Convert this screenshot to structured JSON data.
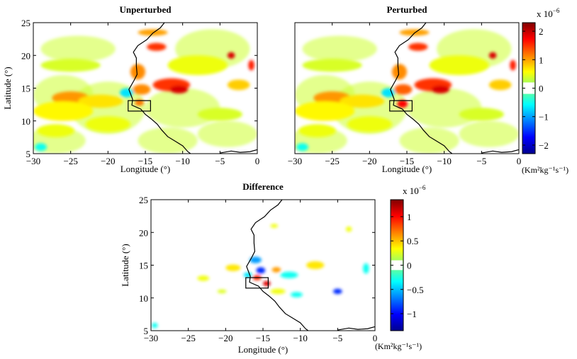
{
  "chart_data": [
    {
      "type": "heatmap",
      "title": "Unperturbed",
      "xlabel": "Longitude (°)",
      "ylabel": "Latitude (°)",
      "xlim": [
        -30,
        0
      ],
      "ylim": [
        5,
        25
      ],
      "xticks": [
        -30,
        -25,
        -20,
        -15,
        -10,
        -5,
        0
      ],
      "yticks": [
        5,
        10,
        15,
        20,
        25
      ],
      "xtick_labels": [
        "−30",
        "−25",
        "−20",
        "−15",
        "−10",
        "−5",
        "0"
      ],
      "ytick_labels": [
        "5",
        "10",
        "15",
        "20",
        "25"
      ],
      "box": {
        "lon": [
          -17.3,
          -14.3
        ],
        "lat": [
          11.5,
          13.1
        ]
      },
      "colormap": "jet",
      "white_band": [
        -0.2,
        0.2
      ],
      "blobs": [
        {
          "lon": -25,
          "lat": 13.5,
          "value": 1.05,
          "rx": 2.5,
          "ry": 1.0
        },
        {
          "lon": -21,
          "lat": 13.0,
          "value": 0.7,
          "rx": 3.0,
          "ry": 1.0
        },
        {
          "lon": -17.5,
          "lat": 14.3,
          "value": -0.7,
          "rx": 0.9,
          "ry": 0.7
        },
        {
          "lon": -15.5,
          "lat": 14.8,
          "value": 1.1,
          "rx": 1.2,
          "ry": 0.8
        },
        {
          "lon": -15.8,
          "lat": 12.8,
          "value": 1.2,
          "rx": 0.6,
          "ry": 0.5
        },
        {
          "lon": -11.5,
          "lat": 15.5,
          "value": 1.5,
          "rx": 2.5,
          "ry": 1.0
        },
        {
          "lon": -10.5,
          "lat": 14.8,
          "value": 1.9,
          "rx": 1.2,
          "ry": 0.6
        },
        {
          "lon": -13.5,
          "lat": 21.3,
          "value": 1.5,
          "rx": 1.3,
          "ry": 0.6
        },
        {
          "lon": -14,
          "lat": 23.5,
          "value": 1.0,
          "rx": 2.0,
          "ry": 0.5
        },
        {
          "lon": -16,
          "lat": 17.5,
          "value": 1.1,
          "rx": 1.0,
          "ry": 1.2
        },
        {
          "lon": -3.5,
          "lat": 20.0,
          "value": 1.9,
          "rx": 0.5,
          "ry": 0.5
        },
        {
          "lon": -0.8,
          "lat": 18.5,
          "value": 1.6,
          "rx": 0.4,
          "ry": 0.8
        },
        {
          "lon": -2.5,
          "lat": 15.5,
          "value": 0.8,
          "rx": 1.5,
          "ry": 0.8
        },
        {
          "lon": -27,
          "lat": 8.5,
          "value": 0.5,
          "rx": 2.5,
          "ry": 1.0
        },
        {
          "lon": -26,
          "lat": 11.5,
          "value": 0.6,
          "rx": 4.0,
          "ry": 1.5
        },
        {
          "lon": -20,
          "lat": 9.5,
          "value": 0.5,
          "rx": 3.0,
          "ry": 1.2
        },
        {
          "lon": -8,
          "lat": 18.5,
          "value": 0.5,
          "rx": 4.0,
          "ry": 1.5
        },
        {
          "lon": -25,
          "lat": 18.5,
          "value": 0.4,
          "rx": 4.0,
          "ry": 1.0
        },
        {
          "lon": -5,
          "lat": 11.0,
          "value": 0.4,
          "rx": 3.0,
          "ry": 1.0
        },
        {
          "lon": -29,
          "lat": 6.0,
          "value": -0.5,
          "rx": 0.8,
          "ry": 0.6
        }
      ]
    },
    {
      "type": "heatmap",
      "title": "Perturbed",
      "xlabel": "Longitude (°)",
      "ylabel": "",
      "xlim": [
        -30,
        0
      ],
      "ylim": [
        5,
        25
      ],
      "xticks": [
        -30,
        -25,
        -20,
        -15,
        -10,
        -5,
        0
      ],
      "xtick_labels": [
        "−30",
        "−25",
        "−20",
        "−15",
        "−10",
        "−5",
        "0"
      ],
      "box": {
        "lon": [
          -17.3,
          -14.3
        ],
        "lat": [
          11.5,
          13.1
        ]
      },
      "colormap": "jet",
      "white_band": [
        -0.2,
        0.2
      ],
      "blobs": [
        {
          "lon": -25,
          "lat": 13.5,
          "value": 1.05,
          "rx": 2.5,
          "ry": 1.0
        },
        {
          "lon": -21,
          "lat": 13.0,
          "value": 0.7,
          "rx": 3.0,
          "ry": 1.0
        },
        {
          "lon": -17.5,
          "lat": 14.3,
          "value": -0.7,
          "rx": 0.9,
          "ry": 0.7
        },
        {
          "lon": -15.5,
          "lat": 14.8,
          "value": 1.3,
          "rx": 1.2,
          "ry": 0.8
        },
        {
          "lon": -15.6,
          "lat": 12.6,
          "value": 1.7,
          "rx": 0.7,
          "ry": 0.6
        },
        {
          "lon": -11.5,
          "lat": 15.5,
          "value": 1.5,
          "rx": 2.5,
          "ry": 1.0
        },
        {
          "lon": -10.5,
          "lat": 14.8,
          "value": 1.9,
          "rx": 1.2,
          "ry": 0.6
        },
        {
          "lon": -13.5,
          "lat": 21.3,
          "value": 1.5,
          "rx": 1.3,
          "ry": 0.6
        },
        {
          "lon": -14,
          "lat": 23.5,
          "value": 1.0,
          "rx": 2.0,
          "ry": 0.5
        },
        {
          "lon": -16,
          "lat": 17.5,
          "value": 1.1,
          "rx": 1.0,
          "ry": 1.2
        },
        {
          "lon": -3.5,
          "lat": 20.0,
          "value": 1.9,
          "rx": 0.5,
          "ry": 0.5
        },
        {
          "lon": -0.8,
          "lat": 18.5,
          "value": 1.6,
          "rx": 0.4,
          "ry": 0.8
        },
        {
          "lon": -2.5,
          "lat": 15.5,
          "value": 0.8,
          "rx": 1.5,
          "ry": 0.8
        },
        {
          "lon": -27,
          "lat": 8.5,
          "value": 0.5,
          "rx": 2.5,
          "ry": 1.0
        },
        {
          "lon": -26,
          "lat": 11.5,
          "value": 0.6,
          "rx": 4.0,
          "ry": 1.5
        },
        {
          "lon": -20,
          "lat": 9.5,
          "value": 0.5,
          "rx": 3.0,
          "ry": 1.2
        },
        {
          "lon": -8,
          "lat": 18.5,
          "value": 0.5,
          "rx": 4.0,
          "ry": 1.5
        },
        {
          "lon": -25,
          "lat": 18.5,
          "value": 0.4,
          "rx": 4.0,
          "ry": 1.0
        },
        {
          "lon": -5,
          "lat": 11.0,
          "value": 0.4,
          "rx": 3.0,
          "ry": 1.0
        },
        {
          "lon": -29,
          "lat": 6.0,
          "value": -0.5,
          "rx": 0.8,
          "ry": 0.6
        }
      ]
    },
    {
      "type": "heatmap",
      "title": "Difference",
      "xlabel": "Longitude (°)",
      "ylabel": "Latitude (°)",
      "xlim": [
        -30,
        0
      ],
      "ylim": [
        5,
        25
      ],
      "xticks": [
        -30,
        -25,
        -20,
        -15,
        -10,
        -5,
        0
      ],
      "yticks": [
        5,
        10,
        15,
        20,
        25
      ],
      "xtick_labels": [
        "−30",
        "−25",
        "−20",
        "−15",
        "−10",
        "−5",
        "0"
      ],
      "ytick_labels": [
        "5",
        "10",
        "15",
        "20",
        "25"
      ],
      "box": {
        "lon": [
          -17.3,
          -14.3
        ],
        "lat": [
          11.5,
          13.1
        ]
      },
      "colormap": "jet",
      "white_band": [
        -0.1,
        0.1
      ],
      "blobs": [
        {
          "lon": -16,
          "lat": 15.8,
          "value": -0.6,
          "rx": 0.8,
          "ry": 0.5
        },
        {
          "lon": -15.3,
          "lat": 14.2,
          "value": -0.9,
          "rx": 0.6,
          "ry": 0.5
        },
        {
          "lon": -15.8,
          "lat": 13.1,
          "value": 0.9,
          "rx": 0.6,
          "ry": 0.4
        },
        {
          "lon": -14.5,
          "lat": 12.2,
          "value": 1.1,
          "rx": 0.5,
          "ry": 0.4
        },
        {
          "lon": -13.2,
          "lat": 14.3,
          "value": 0.6,
          "rx": 0.6,
          "ry": 0.4
        },
        {
          "lon": -19,
          "lat": 14.6,
          "value": 0.4,
          "rx": 1.0,
          "ry": 0.5
        },
        {
          "lon": -17,
          "lat": 13.5,
          "value": -0.4,
          "rx": 0.6,
          "ry": 0.4
        },
        {
          "lon": -11.5,
          "lat": 13.5,
          "value": -0.3,
          "rx": 1.2,
          "ry": 0.5
        },
        {
          "lon": -8,
          "lat": 15.0,
          "value": 0.4,
          "rx": 1.2,
          "ry": 0.6
        },
        {
          "lon": -13,
          "lat": 11.0,
          "value": 0.3,
          "rx": 1.0,
          "ry": 0.4
        },
        {
          "lon": -10.5,
          "lat": 10.5,
          "value": -0.3,
          "rx": 0.8,
          "ry": 0.4
        },
        {
          "lon": -5,
          "lat": 11.0,
          "value": -0.9,
          "rx": 0.6,
          "ry": 0.4
        },
        {
          "lon": -1.2,
          "lat": 14.5,
          "value": -0.3,
          "rx": 0.4,
          "ry": 0.8
        },
        {
          "lon": -3.5,
          "lat": 20.5,
          "value": 0.3,
          "rx": 0.4,
          "ry": 0.4
        },
        {
          "lon": -23,
          "lat": 13.0,
          "value": 0.3,
          "rx": 0.8,
          "ry": 0.4
        },
        {
          "lon": -13.5,
          "lat": 21.0,
          "value": 0.3,
          "rx": 0.5,
          "ry": 0.3
        },
        {
          "lon": -29.5,
          "lat": 5.8,
          "value": -0.3,
          "rx": 0.4,
          "ry": 0.4
        },
        {
          "lon": -20.5,
          "lat": 11.0,
          "value": 0.25,
          "rx": 0.6,
          "ry": 0.3
        }
      ]
    }
  ],
  "colorbars": [
    {
      "multiplier": "x 10",
      "exponent": "−6",
      "vmin": -2.3,
      "vmax": 2.3,
      "ticks": [
        2,
        1,
        0,
        -1,
        -2
      ],
      "tick_labels": [
        "2",
        "1",
        "0",
        "−1",
        "−2"
      ],
      "units": "(Km²kg⁻¹s⁻¹)"
    },
    {
      "multiplier": "x 10",
      "exponent": "−6",
      "vmin": -1.35,
      "vmax": 1.35,
      "ticks": [
        1,
        0.5,
        0,
        -0.5,
        -1
      ],
      "tick_labels": [
        "1",
        "0.5",
        "0",
        "−0.5",
        "−1"
      ],
      "units": "(Km²kg⁻¹s⁻¹)"
    }
  ]
}
